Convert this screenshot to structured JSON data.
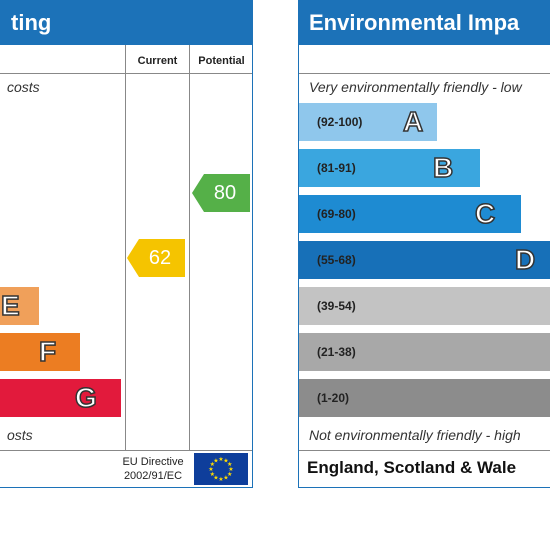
{
  "energy": {
    "title": "Energy Efficiency Rating",
    "title_visible": "ting",
    "col_current": "Current",
    "col_potential": "Potential",
    "note_top": "costs",
    "note_bottom": "osts",
    "bands": [
      {
        "letter": "E",
        "color": "#f0a05a"
      },
      {
        "letter": "F",
        "color": "#ec7d22"
      },
      {
        "letter": "G",
        "color": "#e21a3c"
      }
    ],
    "current": {
      "value": "62",
      "color": "#f5c400"
    },
    "potential": {
      "value": "80",
      "color": "#55b048"
    },
    "eu_line1": "EU Directive",
    "eu_line2": "2002/91/EC"
  },
  "environment": {
    "title": "Environmental Impa",
    "note_top": "Very environmentally friendly - low",
    "note_bottom": "Not environmentally friendly - high",
    "bands": [
      {
        "range": "(92-100)",
        "letter": "A",
        "color": "#8fc7ec"
      },
      {
        "range": "(81-91)",
        "letter": "B",
        "color": "#3aa6df"
      },
      {
        "range": "(69-80)",
        "letter": "C",
        "color": "#1e8bd2"
      },
      {
        "range": "(55-68)",
        "letter": "D",
        "color": "#1770b8"
      },
      {
        "range": "(39-54)",
        "letter": "",
        "color": "#c3c3c3"
      },
      {
        "range": "(21-38)",
        "letter": "",
        "color": "#a8a8a8"
      },
      {
        "range": "(1-20)",
        "letter": "",
        "color": "#8c8c8c"
      }
    ],
    "footer": "England, Scotland & Wale"
  }
}
